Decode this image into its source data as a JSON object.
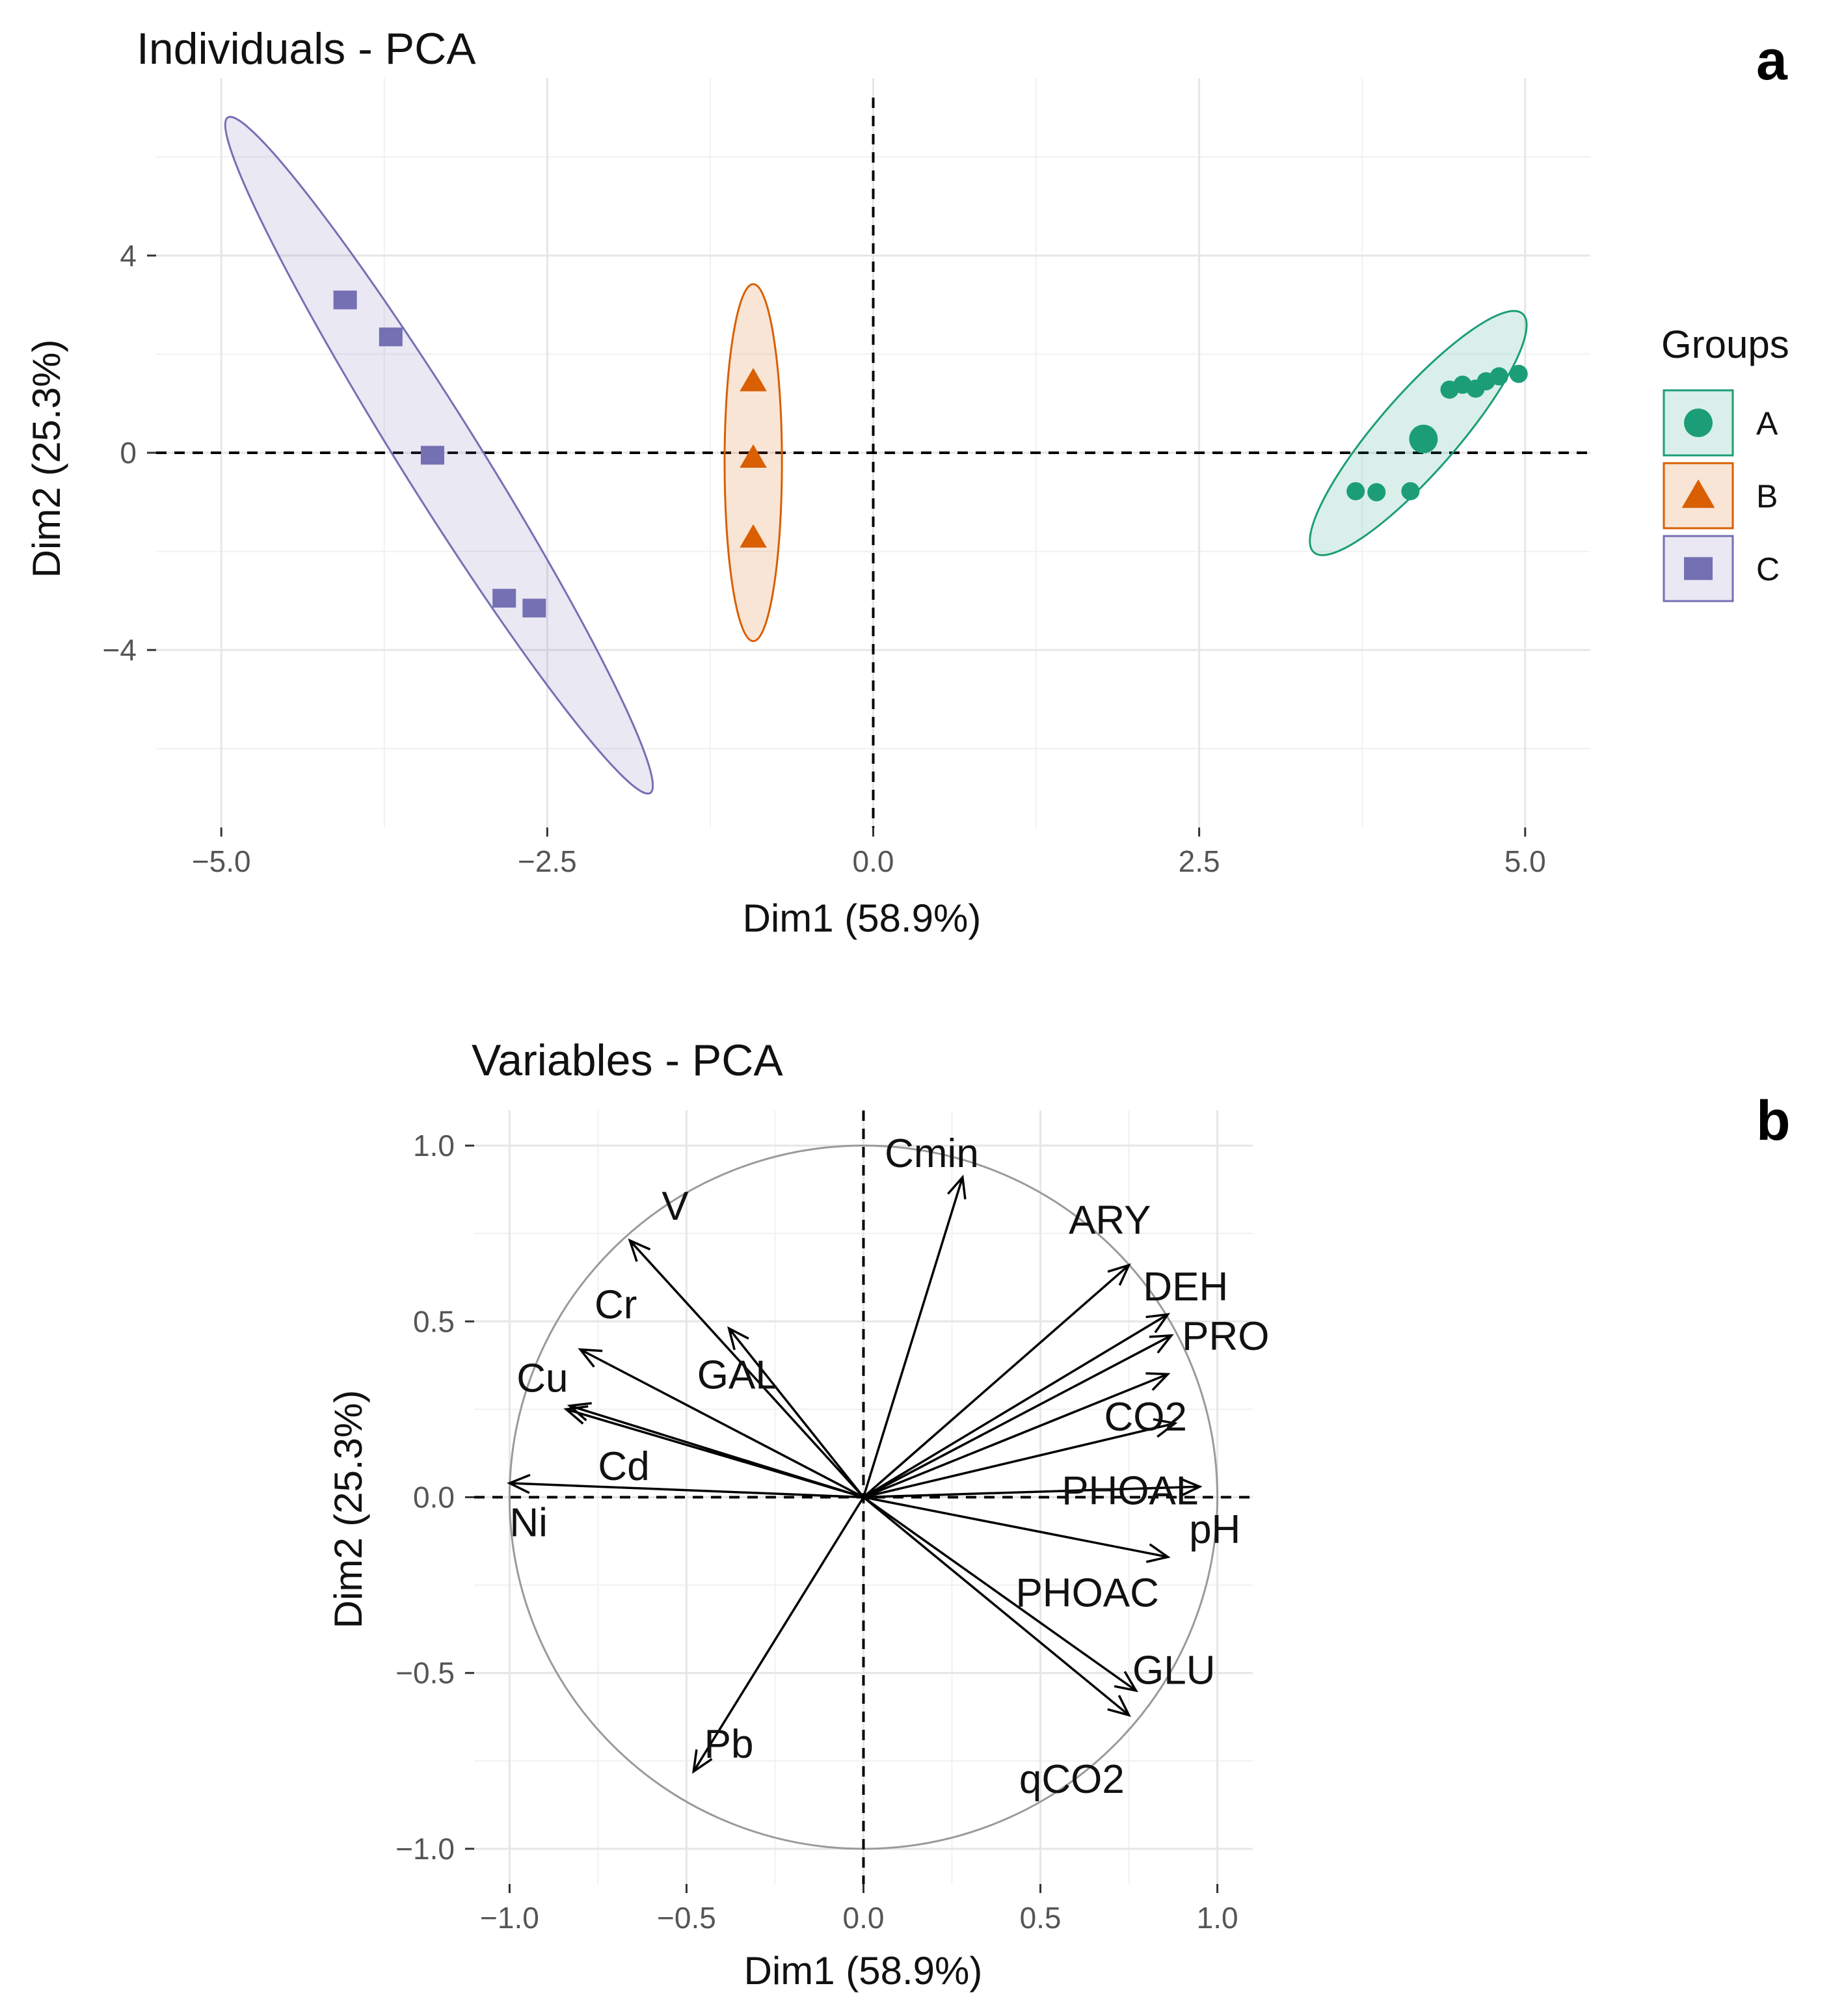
{
  "chart_data": [
    {
      "type": "scatter",
      "panel": "a",
      "title": "Individuals - PCA",
      "xlabel": "Dim1 (58.9%)",
      "ylabel": "Dim2 (25.3%)",
      "xlim": [
        -5.5,
        5.5
      ],
      "ylim": [
        -7.6,
        7.6
      ],
      "xticks": [
        -5.0,
        -2.5,
        0.0,
        2.5,
        5.0
      ],
      "xtick_labels": [
        "-5.0",
        "-2.5",
        "0.0",
        "2.5",
        "5.0"
      ],
      "yticks": [
        4,
        0,
        -4
      ],
      "ytick_labels": [
        "4",
        "0",
        "-4"
      ],
      "legend": {
        "title": "Groups",
        "position": "right"
      },
      "series": [
        {
          "name": "A",
          "color": "#1b9e77",
          "marker": "circle",
          "points": [
            [
              4.42,
              1.28
            ],
            [
              4.52,
              1.38
            ],
            [
              4.62,
              1.3
            ],
            [
              4.7,
              1.45
            ],
            [
              4.8,
              1.55
            ],
            [
              4.95,
              1.6
            ],
            [
              4.22,
              0.28
            ],
            [
              3.7,
              -0.78
            ],
            [
              3.86,
              -0.8
            ],
            [
              4.12,
              -0.78
            ]
          ],
          "ellipse": {
            "center": [
              4.18,
              0.4
            ],
            "major_end": [
              4.98,
              2.82
            ],
            "minor_half": 0.3
          }
        },
        {
          "name": "B",
          "color": "#d95f02",
          "marker": "triangle",
          "points": [
            [
              -0.92,
              1.45
            ],
            [
              -0.92,
              -0.1
            ],
            [
              -0.92,
              -1.72
            ]
          ],
          "ellipse": {
            "center": [
              -0.92,
              -0.2
            ],
            "major_end": [
              -0.92,
              3.42
            ],
            "minor_half": 0.22
          }
        },
        {
          "name": "C",
          "color": "#7570b3",
          "marker": "square",
          "points": [
            [
              -4.05,
              3.1
            ],
            [
              -3.7,
              2.35
            ],
            [
              -3.38,
              -0.05
            ],
            [
              -2.83,
              -2.95
            ],
            [
              -2.6,
              -3.15
            ]
          ],
          "ellipse": {
            "center": [
              -3.33,
              -0.05
            ],
            "major_end": [
              -4.95,
              6.8
            ],
            "minor_half": 0.3
          }
        }
      ]
    },
    {
      "type": "scatter",
      "panel": "b",
      "title": "Variables - PCA",
      "xlabel": "Dim1 (58.9%)",
      "ylabel": "Dim2 (25.3%)",
      "xlim": [
        -1.1,
        1.1
      ],
      "ylim": [
        -1.1,
        1.1
      ],
      "xticks": [
        -1.0,
        -0.5,
        0.0,
        0.5,
        1.0
      ],
      "xtick_labels": [
        "-1.0",
        "-0.5",
        "0.0",
        "0.5",
        "1.0"
      ],
      "yticks": [
        1.0,
        0.5,
        0.0,
        -0.5,
        -1.0
      ],
      "ytick_labels": [
        "1.0",
        "0.5",
        "0.0",
        "-0.5",
        "-1.0"
      ],
      "correlation_circle": true,
      "arrows": [
        {
          "name": "Cmin",
          "x": 0.28,
          "y": 0.91,
          "lx": 0.06,
          "ly": 0.98
        },
        {
          "name": "V",
          "x": -0.66,
          "y": 0.73,
          "lx": -0.57,
          "ly": 0.83
        },
        {
          "name": "ARY",
          "x": 0.75,
          "y": 0.66,
          "lx": 0.58,
          "ly": 0.79
        },
        {
          "name": "DEH",
          "x": 0.86,
          "y": 0.52,
          "lx": 0.79,
          "ly": 0.6
        },
        {
          "name": "PRO",
          "x": 0.87,
          "y": 0.46,
          "lx": 0.9,
          "ly": 0.46
        },
        {
          "name": "CO2",
          "x": 0.86,
          "y": 0.35,
          "lx": 0.68,
          "ly": 0.23
        },
        {
          "name": "Cr",
          "x": -0.8,
          "y": 0.42,
          "lx": -0.76,
          "ly": 0.55
        },
        {
          "name": "GAL",
          "x": -0.38,
          "y": 0.48,
          "lx": -0.47,
          "ly": 0.35
        },
        {
          "name": "Cu",
          "x": -0.84,
          "y": 0.25,
          "lx": -0.98,
          "ly": 0.34
        },
        {
          "name": "Cd",
          "x": -0.83,
          "y": 0.26,
          "lx": -0.75,
          "ly": 0.09
        },
        {
          "name": "PHOAL",
          "x": 0.88,
          "y": 0.21,
          "lx": 0.56,
          "ly": 0.02
        },
        {
          "name": "Ni",
          "x": -1.0,
          "y": 0.04,
          "lx": -1.0,
          "ly": -0.07
        },
        {
          "name": "pH",
          "x": 0.95,
          "y": 0.03,
          "lx": 0.92,
          "ly": -0.09
        },
        {
          "name": "PHOAC",
          "x": 0.86,
          "y": -0.17,
          "lx": 0.43,
          "ly": -0.27
        },
        {
          "name": "GLU",
          "x": 0.77,
          "y": -0.55,
          "lx": 0.76,
          "ly": -0.49
        },
        {
          "name": "qCO2",
          "x": 0.75,
          "y": -0.62,
          "lx": 0.44,
          "ly": -0.8
        },
        {
          "name": "Pb",
          "x": -0.48,
          "y": -0.78,
          "lx": -0.45,
          "ly": -0.7
        }
      ]
    }
  ],
  "panel_letters": {
    "a": "a",
    "b": "b"
  }
}
